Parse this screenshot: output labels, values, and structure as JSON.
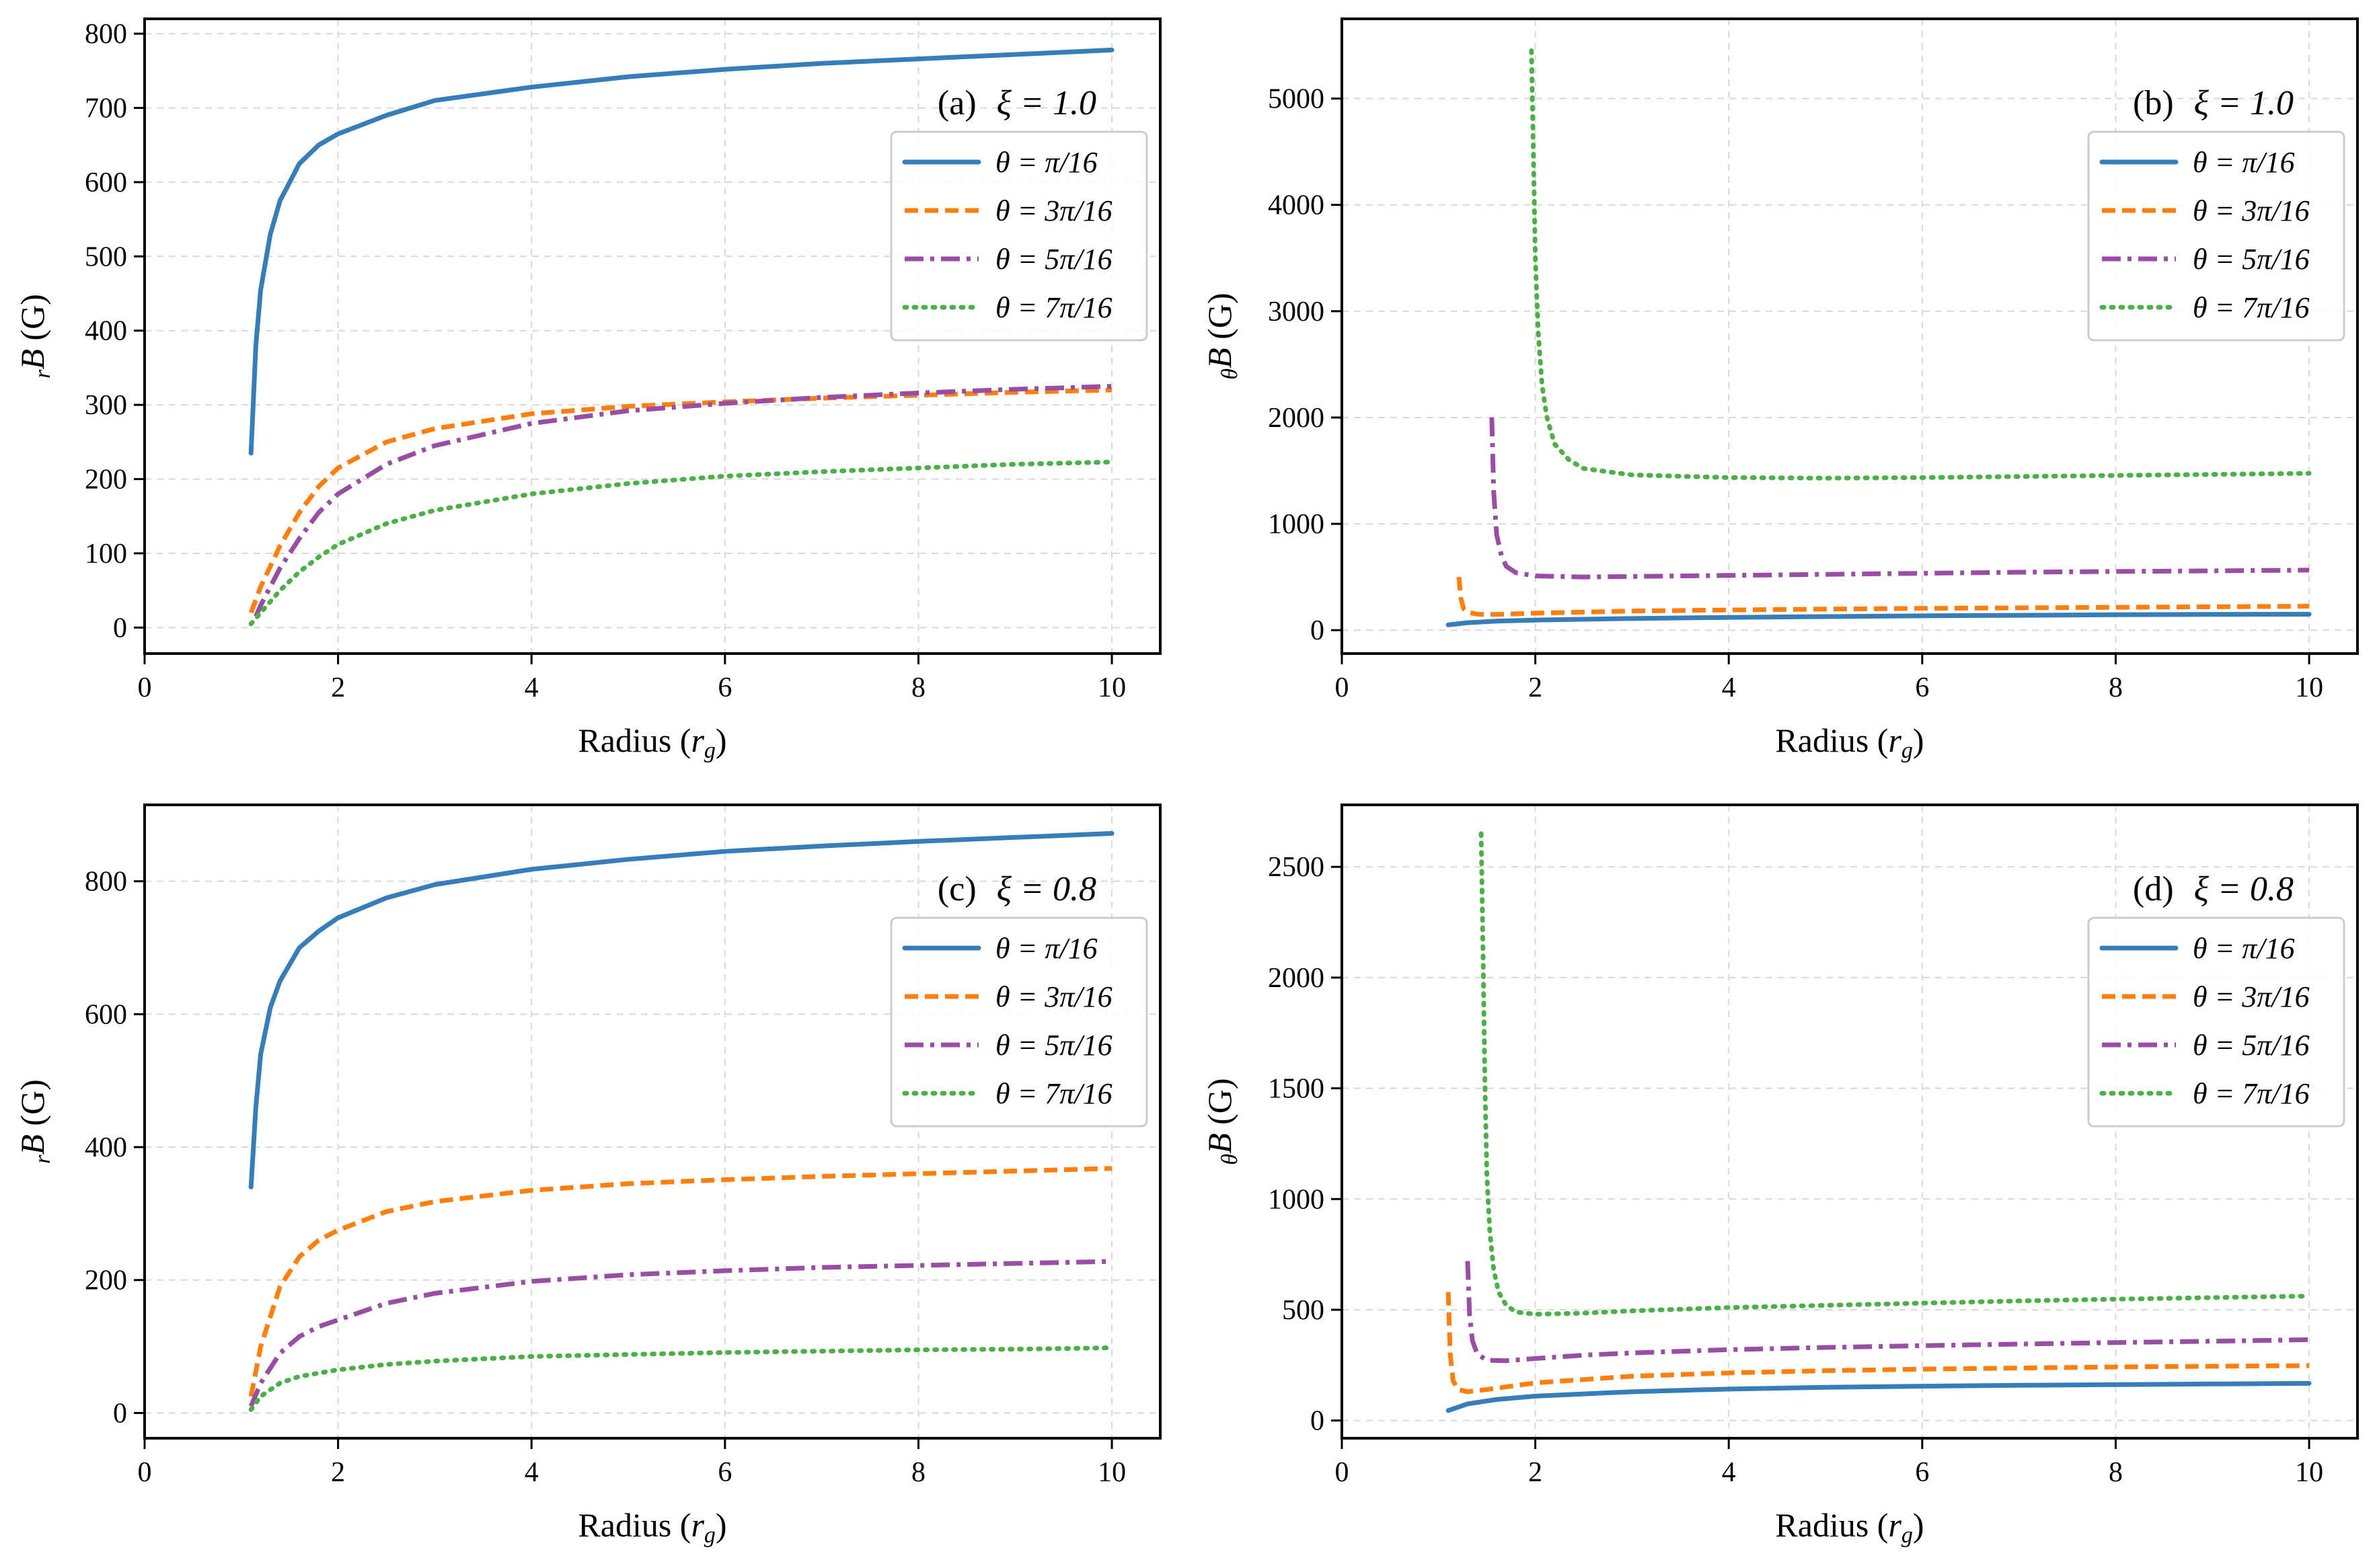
{
  "chart_data": [
    {
      "type": "line",
      "panel_label": "(a)",
      "annotation": "ξ = 1.0",
      "xlabel": "Radius (r_g)",
      "xlabel_main": "Radius (",
      "xlabel_var": "r",
      "xlabel_sub": "g",
      "xlabel_close": ")",
      "ylabel": "rB (G)",
      "ylabel_sub": "r",
      "ylabel_main": "B",
      "ylabel_unit": "(G)",
      "xlim": [
        0,
        10.5
      ],
      "ylim": [
        -35,
        820
      ],
      "xticks": [
        0,
        2,
        4,
        6,
        8,
        10
      ],
      "yticks": [
        0,
        100,
        200,
        300,
        400,
        500,
        600,
        700,
        800
      ],
      "grid": true,
      "legend_position": "right, below annotation",
      "series": [
        {
          "name": "θ = π/16",
          "color": "#377eb8",
          "style": "solid",
          "x": [
            1.1,
            1.15,
            1.2,
            1.3,
            1.4,
            1.6,
            1.8,
            2,
            2.5,
            3,
            4,
            5,
            6,
            7,
            8,
            9,
            10
          ],
          "y": [
            235,
            380,
            455,
            530,
            575,
            625,
            650,
            665,
            690,
            710,
            728,
            742,
            752,
            760,
            766,
            772,
            778
          ]
        },
        {
          "name": "θ = 3π/16",
          "color": "#ff7f0e",
          "style": "dashed",
          "x": [
            1.1,
            1.2,
            1.4,
            1.6,
            1.8,
            2,
            2.5,
            3,
            4,
            5,
            6,
            7,
            8,
            9,
            10
          ],
          "y": [
            20,
            55,
            110,
            155,
            190,
            215,
            250,
            268,
            288,
            298,
            304,
            309,
            313,
            317,
            320
          ]
        },
        {
          "name": "θ = 5π/16",
          "color": "#984ea3",
          "style": "dashdot",
          "x": [
            1.15,
            1.2,
            1.4,
            1.6,
            1.8,
            2,
            2.5,
            3,
            4,
            5,
            6,
            7,
            8,
            9,
            10
          ],
          "y": [
            15,
            30,
            80,
            120,
            155,
            180,
            220,
            245,
            275,
            292,
            302,
            310,
            316,
            321,
            325
          ]
        },
        {
          "name": "θ = 7π/16",
          "color": "#4daf4a",
          "style": "dotted",
          "x": [
            1.1,
            1.2,
            1.4,
            1.6,
            1.8,
            2,
            2.5,
            3,
            4,
            5,
            6,
            7,
            8,
            9,
            10
          ],
          "y": [
            5,
            20,
            50,
            75,
            95,
            112,
            140,
            158,
            180,
            194,
            204,
            210,
            215,
            220,
            223
          ]
        }
      ]
    },
    {
      "type": "line",
      "panel_label": "(b)",
      "annotation": "ξ = 1.0",
      "xlabel": "Radius (r_g)",
      "xlabel_main": "Radius (",
      "xlabel_var": "r",
      "xlabel_sub": "g",
      "xlabel_close": ")",
      "ylabel": "θB (G)",
      "ylabel_sub": "θ",
      "ylabel_main": "B",
      "ylabel_unit": "(G)",
      "xlim": [
        0,
        10.5
      ],
      "ylim": [
        -220,
        5750
      ],
      "xticks": [
        0,
        2,
        4,
        6,
        8,
        10
      ],
      "yticks": [
        0,
        1000,
        2000,
        3000,
        4000,
        5000
      ],
      "grid": true,
      "legend_position": "right, below annotation",
      "series": [
        {
          "name": "θ = π/16",
          "color": "#377eb8",
          "style": "solid",
          "x": [
            1.1,
            1.3,
            1.6,
            2,
            3,
            4,
            5,
            6,
            7,
            8,
            9,
            10
          ],
          "y": [
            50,
            70,
            85,
            95,
            110,
            120,
            128,
            135,
            140,
            145,
            148,
            150
          ]
        },
        {
          "name": "θ = 3π/16",
          "color": "#ff7f0e",
          "style": "dashed",
          "x": [
            1.21,
            1.23,
            1.26,
            1.3,
            1.4,
            1.6,
            2,
            3,
            4,
            5,
            6,
            7,
            8,
            9,
            10
          ],
          "y": [
            500,
            300,
            200,
            170,
            150,
            148,
            160,
            180,
            190,
            198,
            205,
            210,
            215,
            220,
            225
          ]
        },
        {
          "name": "θ = 5π/16",
          "color": "#984ea3",
          "style": "dashdot",
          "x": [
            1.55,
            1.57,
            1.6,
            1.65,
            1.7,
            1.8,
            2,
            2.5,
            3,
            4,
            5,
            6,
            7,
            8,
            9,
            10
          ],
          "y": [
            2000,
            1300,
            900,
            700,
            600,
            540,
            510,
            500,
            505,
            515,
            525,
            535,
            545,
            552,
            558,
            565
          ]
        },
        {
          "name": "θ = 7π/16",
          "color": "#4daf4a",
          "style": "dotted",
          "x": [
            1.96,
            1.98,
            2.0,
            2.03,
            2.07,
            2.12,
            2.2,
            2.35,
            2.5,
            3,
            4,
            5,
            6,
            7,
            8,
            9,
            10
          ],
          "y": [
            5450,
            4500,
            3500,
            2800,
            2300,
            2000,
            1750,
            1600,
            1520,
            1460,
            1435,
            1430,
            1435,
            1445,
            1455,
            1465,
            1475
          ]
        }
      ]
    },
    {
      "type": "line",
      "panel_label": "(c)",
      "annotation": "ξ = 0.8",
      "xlabel": "Radius (r_g)",
      "xlabel_main": "Radius (",
      "xlabel_var": "r",
      "xlabel_sub": "g",
      "xlabel_close": ")",
      "ylabel": "rB (G)",
      "ylabel_sub": "r",
      "ylabel_main": "B",
      "ylabel_unit": "(G)",
      "xlim": [
        0,
        10.5
      ],
      "ylim": [
        -38,
        915
      ],
      "xticks": [
        0,
        2,
        4,
        6,
        8,
        10
      ],
      "yticks": [
        0,
        200,
        400,
        600,
        800
      ],
      "grid": true,
      "legend_position": "right, below annotation",
      "series": [
        {
          "name": "θ = π/16",
          "color": "#377eb8",
          "style": "solid",
          "x": [
            1.1,
            1.15,
            1.2,
            1.3,
            1.4,
            1.6,
            1.8,
            2,
            2.5,
            3,
            4,
            5,
            6,
            7,
            8,
            9,
            10
          ],
          "y": [
            340,
            460,
            540,
            610,
            650,
            700,
            725,
            745,
            775,
            795,
            818,
            833,
            845,
            853,
            860,
            866,
            872
          ]
        },
        {
          "name": "θ = 3π/16",
          "color": "#ff7f0e",
          "style": "dashed",
          "x": [
            1.1,
            1.2,
            1.4,
            1.6,
            1.8,
            2,
            2.5,
            3,
            4,
            5,
            6,
            7,
            8,
            9,
            10
          ],
          "y": [
            25,
            100,
            190,
            235,
            260,
            275,
            303,
            318,
            335,
            345,
            351,
            356,
            360,
            364,
            368
          ]
        },
        {
          "name": "θ = 5π/16",
          "color": "#984ea3",
          "style": "dashdot",
          "x": [
            1.1,
            1.2,
            1.4,
            1.6,
            1.8,
            2,
            2.5,
            3,
            4,
            5,
            6,
            7,
            8,
            9,
            10
          ],
          "y": [
            10,
            45,
            90,
            115,
            130,
            140,
            165,
            180,
            198,
            208,
            214,
            219,
            222,
            225,
            228
          ]
        },
        {
          "name": "θ = 7π/16",
          "color": "#4daf4a",
          "style": "dotted",
          "x": [
            1.1,
            1.2,
            1.4,
            1.6,
            1.8,
            2,
            2.5,
            3,
            4,
            5,
            6,
            7,
            8,
            9,
            10
          ],
          "y": [
            5,
            25,
            45,
            55,
            60,
            65,
            73,
            78,
            85,
            88,
            91,
            93,
            95,
            96,
            98
          ]
        }
      ]
    },
    {
      "type": "line",
      "panel_label": "(d)",
      "annotation": "ξ = 0.8",
      "xlabel": "Radius (r_g)",
      "xlabel_main": "Radius (",
      "xlabel_var": "r",
      "xlabel_sub": "g",
      "xlabel_close": ")",
      "ylabel": "θB (G)",
      "ylabel_sub": "θ",
      "ylabel_main": "B",
      "ylabel_unit": "(G)",
      "xlim": [
        0,
        10.5
      ],
      "ylim": [
        -80,
        2780
      ],
      "xticks": [
        0,
        2,
        4,
        6,
        8,
        10
      ],
      "yticks": [
        0,
        500,
        1000,
        1500,
        2000,
        2500
      ],
      "grid": true,
      "legend_position": "right, below annotation",
      "series": [
        {
          "name": "θ = π/16",
          "color": "#377eb8",
          "style": "solid",
          "x": [
            1.1,
            1.3,
            1.6,
            2,
            3,
            4,
            5,
            6,
            7,
            8,
            9,
            10
          ],
          "y": [
            45,
            75,
            95,
            110,
            130,
            142,
            150,
            155,
            159,
            162,
            165,
            168
          ]
        },
        {
          "name": "θ = 3π/16",
          "color": "#ff7f0e",
          "style": "dashed",
          "x": [
            1.1,
            1.12,
            1.15,
            1.2,
            1.3,
            1.5,
            2,
            3,
            4,
            5,
            6,
            7,
            8,
            9,
            10
          ],
          "y": [
            580,
            300,
            180,
            140,
            130,
            140,
            170,
            200,
            215,
            225,
            232,
            237,
            242,
            245,
            248
          ]
        },
        {
          "name": "θ = 5π/16",
          "color": "#984ea3",
          "style": "dashdot",
          "x": [
            1.3,
            1.32,
            1.35,
            1.4,
            1.5,
            1.7,
            2,
            2.5,
            3,
            4,
            5,
            6,
            7,
            8,
            9,
            10
          ],
          "y": [
            720,
            480,
            360,
            300,
            272,
            270,
            280,
            295,
            305,
            320,
            330,
            338,
            345,
            352,
            358,
            365
          ]
        },
        {
          "name": "θ = 7π/16",
          "color": "#4daf4a",
          "style": "dotted",
          "x": [
            1.44,
            1.46,
            1.48,
            1.5,
            1.53,
            1.57,
            1.62,
            1.7,
            1.8,
            2,
            2.5,
            3,
            4,
            5,
            6,
            7,
            8,
            9,
            10
          ],
          "y": [
            2650,
            2100,
            1500,
            1100,
            850,
            680,
            580,
            520,
            490,
            480,
            485,
            495,
            510,
            520,
            530,
            540,
            548,
            555,
            562
          ]
        }
      ]
    }
  ]
}
